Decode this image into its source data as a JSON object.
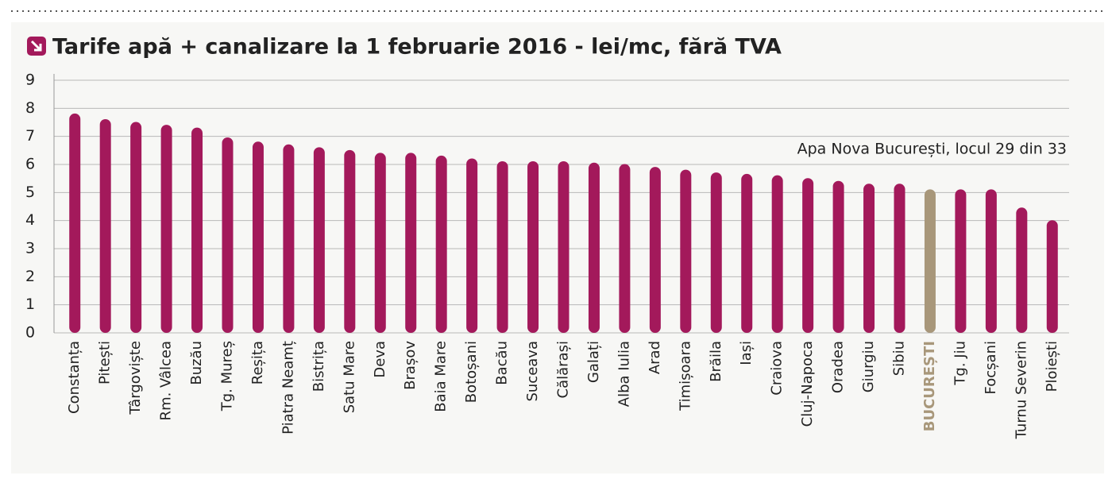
{
  "chart_data": {
    "type": "bar",
    "title": "Tarife apă + canalizare la 1 februarie 2016 - lei/mc, fără TVA",
    "annotation": "Apa Nova București, locul 29 din 33",
    "categories": [
      "Constanța",
      "Pitești",
      "Târgoviște",
      "Rm. Vâlcea",
      "Buzău",
      "Tg. Mureș",
      "Reșița",
      "Piatra Neamț",
      "Bistrița",
      "Satu Mare",
      "Deva",
      "Brașov",
      "Baia Mare",
      "Botoșani",
      "Bacău",
      "Suceava",
      "Călărași",
      "Galați",
      "Alba Iulia",
      "Arad",
      "Timișoara",
      "Brăila",
      "Iași",
      "Craiova",
      "Cluj-Napoca",
      "Oradea",
      "Giurgiu",
      "Sibiu",
      "BUCUREȘTI",
      "Tg. Jiu",
      "Focșani",
      "Turnu Severin",
      "Ploiești"
    ],
    "values": [
      7.7,
      7.5,
      7.4,
      7.3,
      7.2,
      6.85,
      6.7,
      6.6,
      6.5,
      6.4,
      6.3,
      6.3,
      6.2,
      6.1,
      6.0,
      6.0,
      6.0,
      5.95,
      5.9,
      5.8,
      5.7,
      5.6,
      5.55,
      5.5,
      5.4,
      5.3,
      5.2,
      5.2,
      5.0,
      5.0,
      5.0,
      4.35,
      3.9
    ],
    "color": "#a3195b",
    "colors": [
      "#a3195b",
      "#a3195b",
      "#a3195b",
      "#a3195b",
      "#a3195b",
      "#a3195b",
      "#a3195b",
      "#a3195b",
      "#a3195b",
      "#a3195b",
      "#a3195b",
      "#a3195b",
      "#a3195b",
      "#a3195b",
      "#a3195b",
      "#a3195b",
      "#a3195b",
      "#a3195b",
      "#a3195b",
      "#a3195b",
      "#a3195b",
      "#a3195b",
      "#a3195b",
      "#a3195b",
      "#a3195b",
      "#a3195b",
      "#a3195b",
      "#a3195b",
      "#a8977a",
      "#a3195b",
      "#a3195b",
      "#a3195b",
      "#a3195b"
    ],
    "ylim": [
      0,
      9
    ],
    "yticks": [
      0,
      1,
      2,
      3,
      4,
      5,
      6,
      7,
      8,
      9
    ],
    "grid": true
  }
}
